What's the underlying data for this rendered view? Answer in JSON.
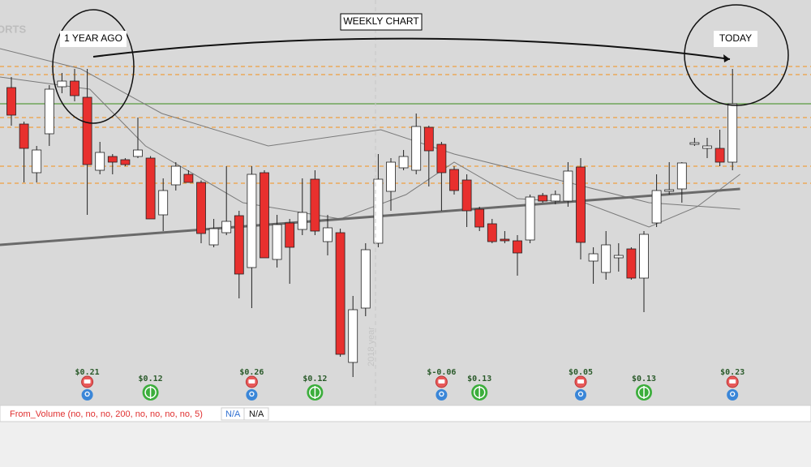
{
  "chart_data": {
    "type": "candlestick",
    "title": "WEEKLY CHART",
    "annotations": {
      "start": "1 YEAR AGO",
      "end": "TODAY",
      "watermark": "ORTS",
      "year_label": "2018 year"
    },
    "categories": [
      null,
      null,
      null,
      null,
      null,
      null,
      null,
      null,
      null,
      null,
      null,
      null,
      null,
      null,
      null,
      null,
      null,
      null,
      null,
      null,
      null,
      null,
      null,
      null,
      null,
      null,
      null,
      null,
      null,
      null,
      null,
      null,
      null,
      null,
      null,
      null,
      null,
      null,
      null,
      null,
      null,
      null,
      null,
      null,
      null,
      null,
      null,
      null,
      null,
      null,
      null,
      null,
      null,
      null,
      null,
      null,
      null,
      null
    ],
    "open": [
      78.4,
      69.4,
      57.4,
      67,
      78.6,
      80,
      76,
      58,
      61.4,
      60.6,
      61.4,
      61,
      47,
      54.4,
      57,
      55,
      39.6,
      42.6,
      46.8,
      34,
      57.4,
      36,
      45,
      43.4,
      55.8,
      40.4,
      42.6,
      10.6,
      24,
      40,
      52.8,
      58.6,
      58,
      68.6,
      64.4,
      58.2,
      55.6,
      48.4,
      44.8,
      41,
      40.6,
      40.8,
      51.8,
      50.4,
      50.4,
      58.8,
      35.6,
      32.8,
      36.4,
      38.6,
      31.4,
      45,
      52.8,
      53.4,
      64.4,
      63.4,
      63.4,
      60
    ],
    "high": [
      81,
      70,
      64,
      79,
      82,
      83,
      83,
      65,
      62,
      61,
      71,
      61.5,
      56,
      60,
      58,
      55.5,
      46,
      59,
      48,
      59,
      58,
      47,
      46,
      56,
      58,
      47,
      43.6,
      27,
      40,
      62,
      61,
      63,
      72,
      69,
      65,
      59,
      57,
      49,
      46,
      43,
      42,
      52,
      52.4,
      53,
      60,
      61,
      39,
      43,
      40,
      39,
      43,
      57,
      60,
      60,
      66,
      66,
      68,
      83
    ],
    "low": [
      69,
      55,
      55,
      64,
      77,
      75,
      47,
      57,
      57,
      59,
      61,
      46,
      43,
      53,
      55,
      40,
      39,
      42,
      26.4,
      24,
      36.4,
      34,
      30,
      42,
      42,
      37,
      12,
      7,
      22,
      39,
      48,
      58,
      57,
      54,
      48,
      52,
      44,
      43,
      40,
      40,
      32,
      40,
      50,
      49.6,
      49,
      36,
      30,
      31,
      33,
      31,
      23,
      44,
      52,
      50,
      64,
      61,
      59,
      58
    ],
    "close": [
      71.6,
      63.4,
      63,
      78,
      80,
      76.4,
      59.4,
      62.4,
      60,
      59.4,
      63,
      46,
      53,
      59,
      55,
      42.4,
      43.6,
      45.4,
      32.4,
      57,
      36.4,
      44.6,
      39,
      47.6,
      43,
      43.8,
      12.6,
      23.6,
      38.4,
      55.8,
      60,
      61.4,
      68.8,
      62.8,
      57.4,
      53,
      48,
      44,
      40.4,
      40.6,
      37.6,
      51.4,
      50.4,
      52,
      57.8,
      40.2,
      37.4,
      39.6,
      37,
      31.4,
      42.2,
      53,
      53.2,
      59.8,
      64.8,
      64,
      60,
      74.4
    ],
    "up_color": "#ffffff",
    "down_color": "#e8302e",
    "ylim": [
      0,
      100
    ],
    "levels": [
      {
        "value": 83.6,
        "color": "#f0a040",
        "style": "dashed"
      },
      {
        "value": 81.6,
        "color": "#f0a040",
        "style": "dashed"
      },
      {
        "value": 74.4,
        "color": "#5a9a40",
        "style": "solid"
      },
      {
        "value": 71,
        "color": "#f0a040",
        "style": "dashed"
      },
      {
        "value": 68.6,
        "color": "#f0a040",
        "style": "dashed"
      },
      {
        "value": 59,
        "color": "#f0a040",
        "style": "dashed"
      },
      {
        "value": 54.8,
        "color": "#f0a040",
        "style": "dashed"
      }
    ],
    "series": [
      {
        "color": "#7a7a7a",
        "width": 1,
        "x": [
          -0.9,
          5.5,
          11.9,
          20.3,
          29.2,
          35,
          44,
          50.4,
          57.6
        ],
        "values": [
          88,
          83,
          72,
          64,
          68,
          62,
          55,
          50,
          48.4
        ]
      },
      {
        "color": "#7a7a7a",
        "width": 1,
        "x": [
          -0.9,
          6.2,
          10.6,
          18.3,
          26,
          31.2,
          35,
          40,
          45.3,
          50.4,
          54.2,
          57.6
        ],
        "values": [
          81,
          78,
          64,
          50,
          46,
          52,
          60,
          51,
          50,
          44,
          49,
          57
        ]
      },
      {
        "color": "#6a6a6a",
        "width": 3,
        "x": [
          -0.9,
          57.6
        ],
        "values": [
          39.6,
          53.4
        ]
      }
    ],
    "earnings": {
      "x": [
        6,
        19,
        34,
        45,
        57
      ],
      "labels": [
        "$0.21",
        "$0.26",
        "$-0.06",
        "$0.05",
        "$0.23"
      ]
    },
    "dividends": {
      "x": [
        11,
        24,
        37,
        50
      ],
      "labels": [
        "$0.12",
        "$0.12",
        "$0.13",
        "$0.13"
      ]
    }
  },
  "status_bar": {
    "study": "From_Volume (no, no, no, 200, no, no, no, no, 5)",
    "value_1": "N/A",
    "value_2": "N/A"
  }
}
